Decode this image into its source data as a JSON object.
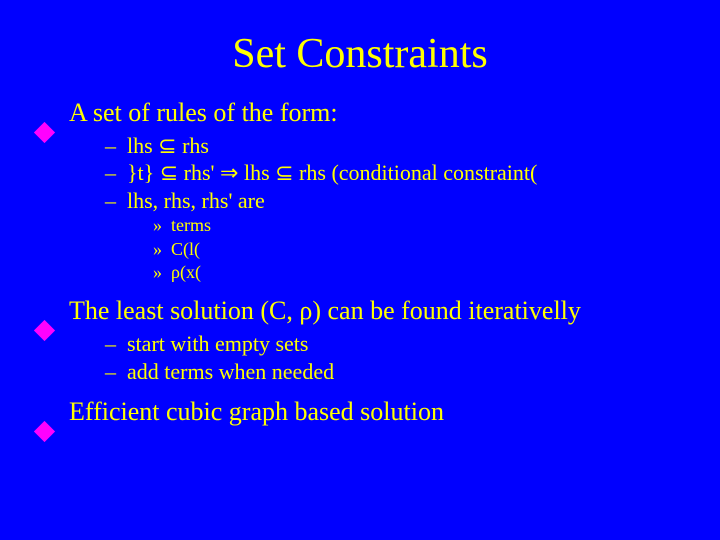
{
  "colors": {
    "background": "#0000ff",
    "text": "#ffff00",
    "bullet": "#ff00ff"
  },
  "typography": {
    "family": "Times New Roman",
    "title_size_pt": 42,
    "l1_size_pt": 26,
    "l2_size_pt": 22,
    "l3_size_pt": 18
  },
  "title": "Set Constraints",
  "body": {
    "p1": {
      "text": "A set of rules of the form:",
      "sub": [
        "lhs ⊆ rhs",
        "}t} ⊆ rhs' ⇒ lhs ⊆ rhs (conditional constraint(",
        "lhs, rhs, rhs' are"
      ],
      "sub2": [
        "terms",
        "C(l(",
        "ρ(x("
      ]
    },
    "p2": {
      "text": "The least solution (C, ρ) can be found iterativelly",
      "sub": [
        "start with empty sets",
        "add terms when needed"
      ]
    },
    "p3": {
      "text": "Efficient cubic graph based solution"
    }
  },
  "dash": "–",
  "chev": "»"
}
